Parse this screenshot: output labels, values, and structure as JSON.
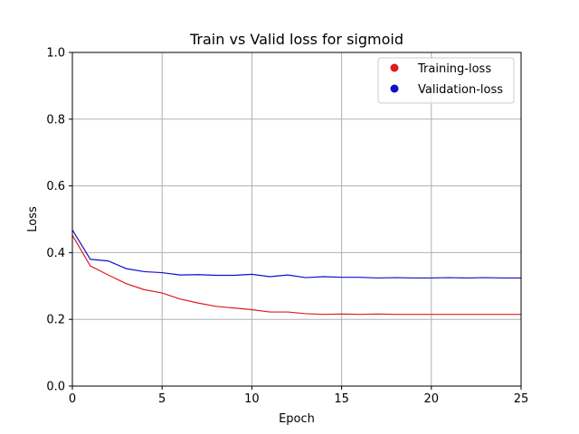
{
  "chart_data": {
    "type": "line",
    "title": "Train vs Valid loss for sigmoid",
    "xlabel": "Epoch",
    "ylabel": "Loss",
    "xlim": [
      0,
      25
    ],
    "ylim": [
      0.0,
      1.0
    ],
    "xticks": [
      0,
      5,
      10,
      15,
      20,
      25
    ],
    "xtick_labels": [
      "0",
      "5",
      "10",
      "15",
      "20",
      "25"
    ],
    "yticks": [
      0.0,
      0.2,
      0.4,
      0.6,
      0.8,
      1.0
    ],
    "ytick_labels": [
      "0.0",
      "0.2",
      "0.4",
      "0.6",
      "0.8",
      "1.0"
    ],
    "grid": true,
    "legend_position": "upper right",
    "x": [
      0,
      1,
      2,
      3,
      4,
      5,
      6,
      7,
      8,
      9,
      10,
      11,
      12,
      13,
      14,
      15,
      16,
      17,
      18,
      19,
      20,
      21,
      22,
      23,
      24,
      25
    ],
    "series": [
      {
        "name": "Training-loss",
        "color": "#dd1c1c",
        "values": [
          0.452,
          0.36,
          0.333,
          0.307,
          0.289,
          0.279,
          0.261,
          0.249,
          0.239,
          0.234,
          0.229,
          0.222,
          0.222,
          0.217,
          0.215,
          0.216,
          0.215,
          0.216,
          0.215,
          0.215,
          0.215,
          0.215,
          0.215,
          0.215,
          0.215,
          0.215
        ]
      },
      {
        "name": "Validation-loss",
        "color": "#1010cc",
        "values": [
          0.468,
          0.38,
          0.375,
          0.352,
          0.343,
          0.34,
          0.333,
          0.334,
          0.332,
          0.332,
          0.335,
          0.328,
          0.333,
          0.325,
          0.328,
          0.326,
          0.326,
          0.324,
          0.325,
          0.324,
          0.324,
          0.325,
          0.324,
          0.325,
          0.324,
          0.324
        ]
      }
    ]
  }
}
